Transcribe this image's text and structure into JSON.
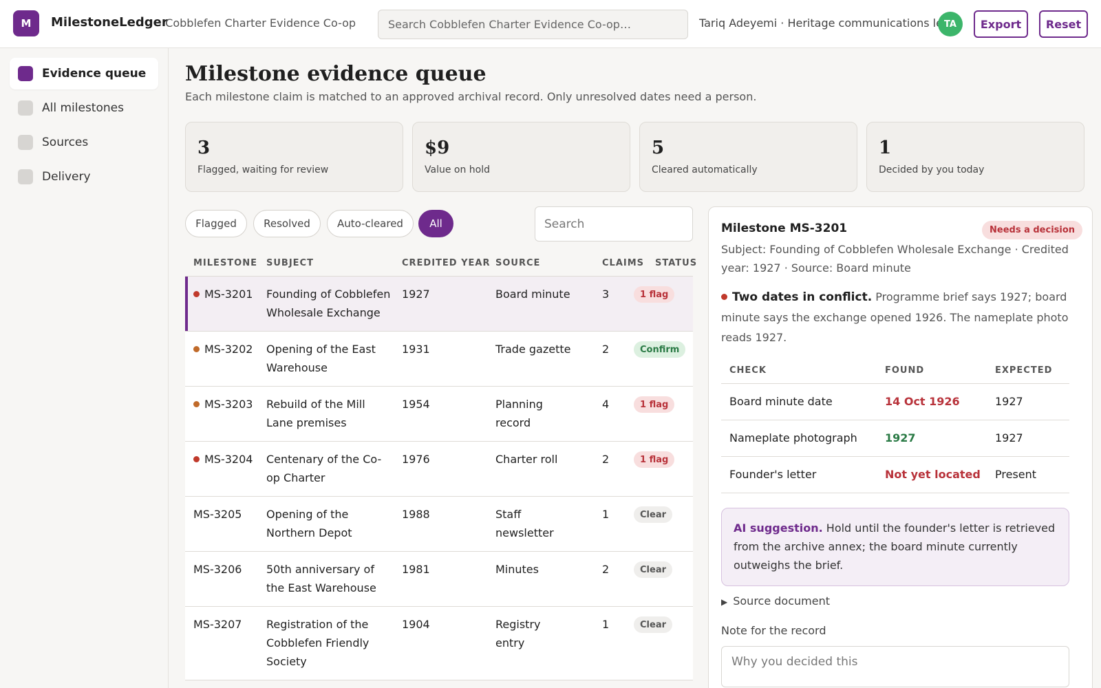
{
  "app": {
    "logo_letter": "M",
    "name": "MilestoneLedger",
    "org": "· Cobblefen Charter Evidence Co-op",
    "search_placeholder": "Search Cobblefen Charter Evidence Co-op…",
    "user": "Tariq Adeyemi · Heritage communications lead",
    "user_initials": "TA",
    "export_label": "Export",
    "reset_label": "Reset",
    "accent_color": "#6e2a8c"
  },
  "sidebar": {
    "items": [
      {
        "label": "Evidence queue",
        "active": true
      },
      {
        "label": "All milestones"
      },
      {
        "label": "Sources"
      },
      {
        "label": "Delivery"
      }
    ]
  },
  "page": {
    "title": "Milestone evidence queue",
    "subtitle": "Each milestone claim is matched to an approved archival record. Only unresolved dates need a person."
  },
  "stats": [
    {
      "value": "3",
      "label": "Flagged, waiting for review"
    },
    {
      "value": "$9",
      "label": "Value on hold"
    },
    {
      "value": "5",
      "label": "Cleared automatically"
    },
    {
      "value": "1",
      "label": "Decided by you today"
    }
  ],
  "filters": {
    "tabs": [
      {
        "label": "Flagged"
      },
      {
        "label": "Resolved"
      },
      {
        "label": "Auto-cleared"
      },
      {
        "label": "All",
        "active": true
      }
    ],
    "search_placeholder": "Search"
  },
  "table": {
    "headers": [
      "MILESTONE",
      "SUBJECT",
      "CREDITED YEAR",
      "SOURCE",
      "CLAIMS",
      "STATUS"
    ],
    "rows": [
      {
        "id": "MS-3201",
        "dot": "#c0392b",
        "subject": "Founding of Cobblefen Wholesale Exchange",
        "year": "1927",
        "source": "Board minute",
        "claims": "3",
        "status": "1 flag",
        "status_type": "flag",
        "selected": true
      },
      {
        "id": "MS-3202",
        "dot": "#c06a2a",
        "subject": "Opening of the East Warehouse",
        "year": "1931",
        "source": "Trade gazette",
        "claims": "2",
        "status": "Confirm",
        "status_type": "confirm"
      },
      {
        "id": "MS-3203",
        "dot": "#c06a2a",
        "subject": "Rebuild of the Mill Lane premises",
        "year": "1954",
        "source": "Planning record",
        "claims": "4",
        "status": "1 flag",
        "status_type": "flag"
      },
      {
        "id": "MS-3204",
        "dot": "#c0392b",
        "subject": "Centenary of the Co-op Charter",
        "year": "1976",
        "source": "Charter roll",
        "claims": "2",
        "status": "1 flag",
        "status_type": "flag"
      },
      {
        "id": "MS-3205",
        "subject": "Opening of the Northern Depot",
        "year": "1988",
        "source": "Staff newsletter",
        "claims": "1",
        "status": "Clear",
        "status_type": "clear"
      },
      {
        "id": "MS-3206",
        "subject": "50th anniversary of the East Warehouse",
        "year": "1981",
        "source": "Minutes",
        "claims": "2",
        "status": "Clear",
        "status_type": "clear"
      },
      {
        "id": "MS-3207",
        "subject": "Registration of the Cobblefen Friendly Society",
        "year": "1904",
        "source": "Registry entry",
        "claims": "1",
        "status": "Clear",
        "status_type": "clear"
      }
    ]
  },
  "detail": {
    "title": "Milestone MS-3201",
    "badge": "Needs a decision",
    "subtitle": "Subject: Founding of Cobblefen Wholesale Exchange · Credited year: 1927 · Source: Board minute",
    "conflict_title": "Two dates in conflict.",
    "conflict_text": " Programme brief says 1927; board minute says the exchange opened 1926. The nameplate photo reads 1927.",
    "check_headers": [
      "CHECK",
      "FOUND",
      "EXPECTED"
    ],
    "checks": [
      {
        "check": "Board minute date",
        "found": "14 Oct 1926",
        "expected": "1927",
        "result": "bad"
      },
      {
        "check": "Nameplate photograph",
        "found": "1927",
        "expected": "1927",
        "result": "good"
      },
      {
        "check": "Founder's letter",
        "found": "Not yet located",
        "expected": "Present",
        "result": "bad"
      }
    ],
    "ai_label": "AI suggestion.",
    "ai_text": " Hold until the founder's letter is retrieved from the archive annex; the board minute currently outweighs the brief.",
    "source_doc": "Source document",
    "note_label": "Note for the record",
    "note_placeholder": "Why you decided this"
  }
}
